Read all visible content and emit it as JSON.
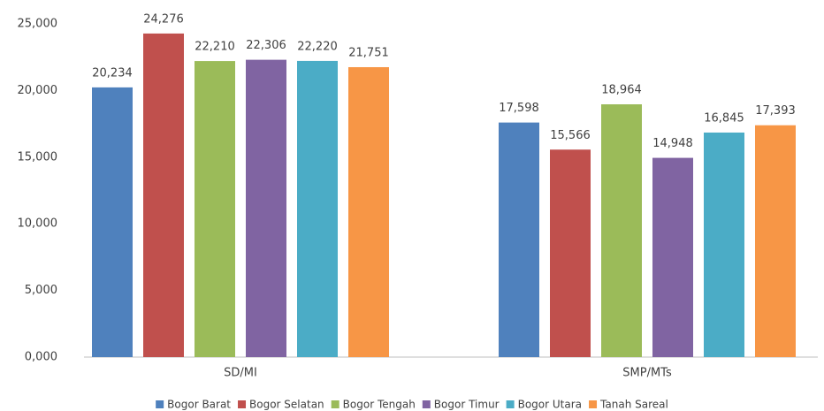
{
  "chart_data": {
    "type": "bar",
    "categories": [
      "SD/MI",
      "SMP/MTs"
    ],
    "series": [
      {
        "name": "Bogor Barat",
        "color": "#4f81bd",
        "values": [
          20234,
          17598
        ],
        "value_labels": [
          "20,234",
          "17,598"
        ]
      },
      {
        "name": "Bogor Selatan",
        "color": "#c0504d",
        "values": [
          24276,
          15566
        ],
        "value_labels": [
          "24,276",
          "15,566"
        ]
      },
      {
        "name": "Bogor Tengah",
        "color": "#9bbb59",
        "values": [
          22210,
          18964
        ],
        "value_labels": [
          "22,210",
          "18,964"
        ]
      },
      {
        "name": "Bogor Timur",
        "color": "#8064a2",
        "values": [
          22306,
          14948
        ],
        "value_labels": [
          "22,306",
          "14,948"
        ]
      },
      {
        "name": "Bogor Utara",
        "color": "#4bacc6",
        "values": [
          22220,
          16845
        ],
        "value_labels": [
          "22,220",
          "16,845"
        ]
      },
      {
        "name": "Tanah Sareal",
        "color": "#f79646",
        "values": [
          21751,
          17393
        ],
        "value_labels": [
          "21,751",
          "17,393"
        ]
      }
    ],
    "ylim": [
      0,
      25000
    ],
    "yticks": [
      {
        "value": 0,
        "label": "0,000"
      },
      {
        "value": 5000,
        "label": "5,000"
      },
      {
        "value": 10000,
        "label": "10,000"
      },
      {
        "value": 15000,
        "label": "15,000"
      },
      {
        "value": 20000,
        "label": "20,000"
      },
      {
        "value": 25000,
        "label": "25,000"
      }
    ],
    "grid": false,
    "legend": "bottom"
  }
}
